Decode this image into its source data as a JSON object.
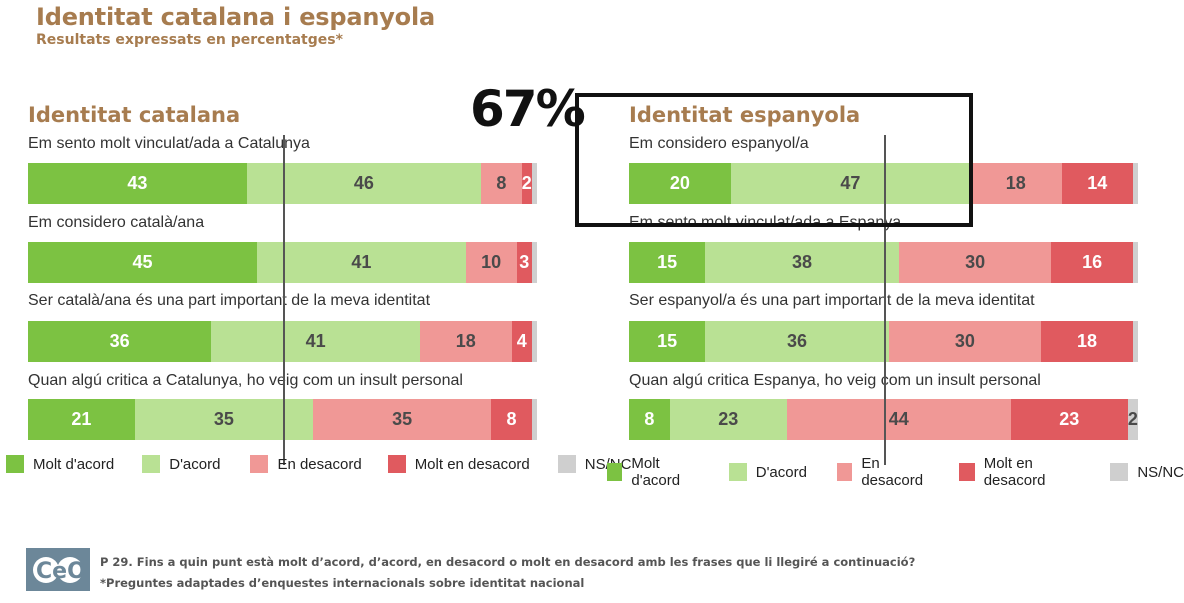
{
  "header": {
    "title": "Identitat catalana i espanyola",
    "subtitle": "Resultats expressats en percentatges*"
  },
  "annotation": {
    "big_value": "67%"
  },
  "chart_data": [
    {
      "type": "bar",
      "stacked": true,
      "orientation": "horizontal",
      "title": "Identitat catalana",
      "categories": [
        "Em sento molt vinculat/ada a Catalunya",
        "Em considero català/ana",
        "Ser català/ana és una part important de la meva identitat",
        "Quan algú critica a Catalunya, ho veig com un insult personal"
      ],
      "series": [
        {
          "name": "Molt d'acord",
          "values": [
            43,
            45,
            36,
            21
          ]
        },
        {
          "name": "D'acord",
          "values": [
            46,
            41,
            41,
            35
          ]
        },
        {
          "name": "En desacord",
          "values": [
            8,
            10,
            18,
            35
          ]
        },
        {
          "name": "Molt en desacord",
          "values": [
            2,
            3,
            4,
            8
          ]
        },
        {
          "name": "NS/NC",
          "values": [
            1,
            1,
            1,
            1
          ]
        }
      ],
      "labels_shown": [
        [
          "43",
          "46",
          "8",
          "2",
          ""
        ],
        [
          "45",
          "41",
          "10",
          "3",
          ""
        ],
        [
          "36",
          "41",
          "18",
          "4",
          ""
        ],
        [
          "21",
          "35",
          "35",
          "8",
          ""
        ]
      ]
    },
    {
      "type": "bar",
      "stacked": true,
      "orientation": "horizontal",
      "title": "Identitat espanyola",
      "categories": [
        "Em considero espanyol/a",
        "Em sento molt vinculat/ada a Espanya",
        "Ser espanyol/a és una part important de la meva identitat",
        "Quan algú critica Espanya, ho veig com un insult personal"
      ],
      "series": [
        {
          "name": "Molt d'acord",
          "values": [
            20,
            15,
            15,
            8
          ]
        },
        {
          "name": "D'acord",
          "values": [
            47,
            38,
            36,
            23
          ]
        },
        {
          "name": "En desacord",
          "values": [
            18,
            30,
            30,
            44
          ]
        },
        {
          "name": "Molt en desacord",
          "values": [
            14,
            16,
            18,
            23
          ]
        },
        {
          "name": "NS/NC",
          "values": [
            1,
            1,
            1,
            2
          ]
        }
      ],
      "labels_shown": [
        [
          "20",
          "47",
          "18",
          "14",
          ""
        ],
        [
          "15",
          "38",
          "30",
          "16",
          ""
        ],
        [
          "15",
          "36",
          "30",
          "18",
          ""
        ],
        [
          "8",
          "23",
          "44",
          "23",
          "2"
        ]
      ]
    }
  ],
  "legend": {
    "items": [
      {
        "label": "Molt d'acord",
        "color": "#7cc242"
      },
      {
        "label": "D'acord",
        "color": "#b9e194"
      },
      {
        "label": "En desacord",
        "color": "#f09896"
      },
      {
        "label": "Molt en desacord",
        "color": "#e05a5f"
      },
      {
        "label": "NS/NC",
        "color": "#cfcfcf"
      }
    ]
  },
  "footer": {
    "logo_text": "CeO",
    "question": "P 29. Fins a quin punt està molt d’acord, d’acord, en desacord o molt en desacord amb les frases que li llegiré a continuació?",
    "note": "*Preguntes adaptades d’enquestes internacionals sobre identitat nacional"
  }
}
